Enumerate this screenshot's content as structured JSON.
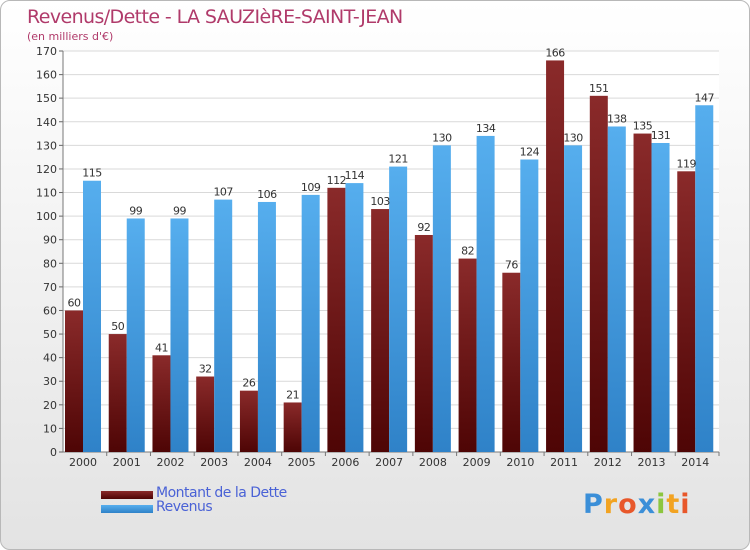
{
  "header": {
    "title": "Revenus/Dette - LA SAUZIèRE-SAINT-JEAN",
    "subtitle": "(en milliers d'€)"
  },
  "chart_data": {
    "type": "bar",
    "title": "Revenus/Dette - LA SAUZIèRE-SAINT-JEAN",
    "subtitle": "(en milliers d'€)",
    "xlabel": "",
    "ylabel": "",
    "ylim": [
      0,
      170
    ],
    "ytick_step": 10,
    "grid": true,
    "categories": [
      "2000",
      "2001",
      "2002",
      "2003",
      "2004",
      "2005",
      "2006",
      "2007",
      "2008",
      "2009",
      "2010",
      "2011",
      "2012",
      "2013",
      "2014"
    ],
    "series": [
      {
        "name": "Montant de la Dette",
        "color": "#7a1c1c",
        "values": [
          60,
          50,
          41,
          32,
          26,
          21,
          112,
          103,
          92,
          82,
          76,
          166,
          151,
          135,
          119
        ]
      },
      {
        "name": "Revenus",
        "color": "#3b97de",
        "values": [
          115,
          99,
          99,
          107,
          106,
          109,
          114,
          121,
          130,
          134,
          124,
          130,
          138,
          131,
          147
        ]
      }
    ]
  },
  "legend": {
    "items": [
      {
        "label": "Montant de la Dette",
        "color": "#7a1c1c"
      },
      {
        "label": "Revenus",
        "color": "#3b97de"
      }
    ]
  },
  "logo": {
    "letters": [
      "P",
      "r",
      "o",
      "x",
      "i",
      "t",
      "i"
    ],
    "colors": [
      "#3b8fd8",
      "#f2a321",
      "#e8572a",
      "#3b8fd8",
      "#8cc63f",
      "#f2a321",
      "#e8572a"
    ]
  }
}
